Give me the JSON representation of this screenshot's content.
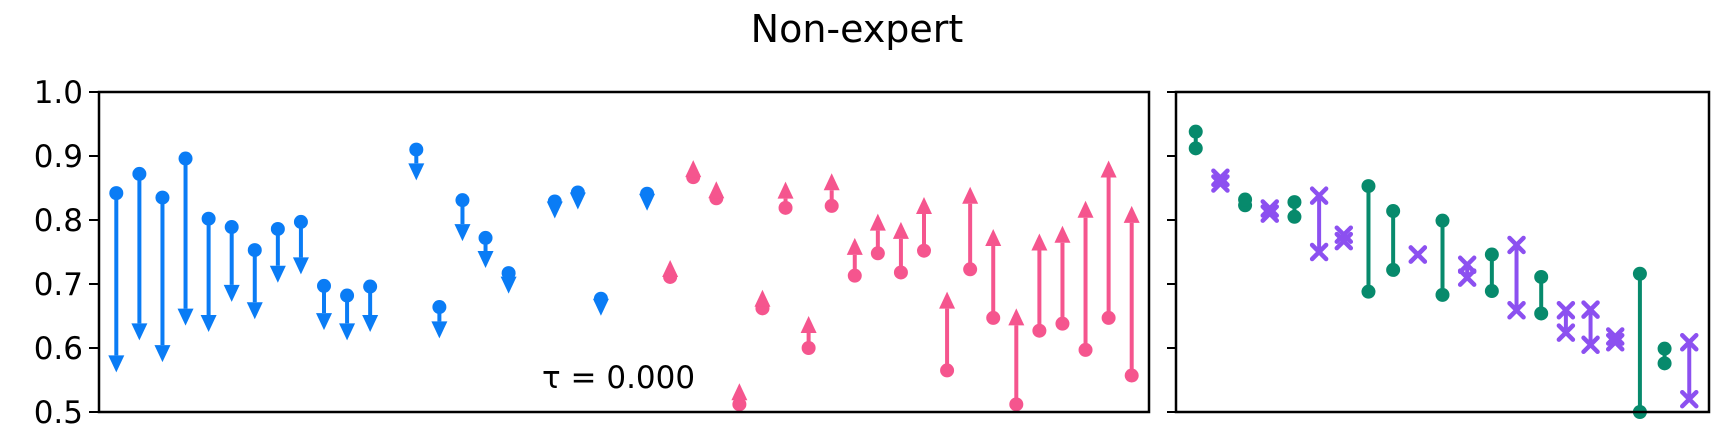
{
  "colors": {
    "decrease": "#0a7cf5",
    "increase": "#f5558e",
    "teal": "#078a6c",
    "purple": "#8c50f0"
  },
  "chart_data": [
    {
      "type": "arrow-range",
      "title": "Non-expert",
      "ylim": [
        0.5,
        1.0
      ],
      "yticks": [
        "0.5",
        "0.6",
        "0.7",
        "0.8",
        "0.9",
        "1.0"
      ],
      "grid": false,
      "annotation": "τ = 0.000",
      "decreases": [
        [
          0.842,
          0.562
        ],
        [
          0.872,
          0.612
        ],
        [
          0.835,
          0.578
        ],
        [
          0.896,
          0.635
        ],
        [
          0.802,
          0.625
        ],
        [
          0.789,
          0.672
        ],
        [
          0.753,
          0.645
        ],
        [
          0.786,
          0.702
        ],
        [
          0.797,
          0.715
        ],
        [
          0.697,
          0.628
        ],
        [
          0.682,
          0.612
        ],
        [
          0.696,
          0.625
        ],
        [
          null,
          null
        ],
        [
          0.91,
          0.862
        ],
        [
          0.664,
          0.615
        ],
        [
          0.831,
          0.767
        ],
        [
          0.772,
          0.725
        ],
        [
          0.717,
          0.685
        ],
        [
          null,
          null
        ],
        [
          0.829,
          0.82
        ],
        [
          0.843,
          0.834
        ],
        [
          0.677,
          0.672
        ],
        [
          null,
          null
        ],
        [
          0.841,
          0.837
        ]
      ],
      "increases": [
        [
          0.711,
          0.715
        ],
        [
          0.867,
          0.878
        ],
        [
          0.834,
          0.845
        ],
        [
          0.512,
          0.545
        ],
        [
          0.662,
          0.691
        ],
        [
          0.819,
          0.86
        ],
        [
          0.6,
          0.65
        ],
        [
          0.822,
          0.873
        ],
        [
          0.713,
          0.772
        ],
        [
          0.748,
          0.81
        ],
        [
          0.718,
          0.797
        ],
        [
          0.752,
          0.836
        ],
        [
          0.565,
          0.688
        ],
        [
          0.723,
          0.852
        ],
        [
          0.647,
          0.786
        ],
        [
          0.512,
          0.662
        ],
        [
          0.627,
          0.779
        ],
        [
          0.638,
          0.791
        ],
        [
          0.597,
          0.83
        ],
        [
          0.647,
          0.893
        ],
        [
          0.557,
          0.822
        ]
      ]
    },
    {
      "type": "dumbbell",
      "ylim": [
        0.5,
        1.0
      ],
      "grid": false,
      "groups": [
        {
          "marker": "circle",
          "low": 0.912,
          "high": 0.938
        },
        {
          "marker": "x",
          "low": 0.857,
          "high": 0.866
        },
        {
          "marker": "circle",
          "low": 0.823,
          "high": 0.832
        },
        {
          "marker": "x",
          "low": 0.81,
          "high": 0.818
        },
        {
          "marker": "circle",
          "low": 0.805,
          "high": 0.828
        },
        {
          "marker": "x",
          "low": 0.75,
          "high": 0.838
        },
        {
          "marker": "x",
          "low": 0.767,
          "high": 0.777
        },
        {
          "marker": "circle",
          "low": 0.688,
          "high": 0.853
        },
        {
          "marker": "circle",
          "low": 0.722,
          "high": 0.814
        },
        {
          "marker": "x",
          "low": 0.746,
          "high": 0.746
        },
        {
          "marker": "circle",
          "low": 0.683,
          "high": 0.799
        },
        {
          "marker": "x",
          "low": 0.71,
          "high": 0.73
        },
        {
          "marker": "circle",
          "low": 0.689,
          "high": 0.746
        },
        {
          "marker": "x",
          "low": 0.659,
          "high": 0.761
        },
        {
          "marker": "circle",
          "low": 0.654,
          "high": 0.711
        },
        {
          "marker": "x",
          "low": 0.624,
          "high": 0.659
        },
        {
          "marker": "x",
          "low": 0.605,
          "high": 0.66
        },
        {
          "marker": "x",
          "low": 0.609,
          "high": 0.618
        },
        {
          "marker": "circle",
          "low": 0.5,
          "high": 0.716
        },
        {
          "marker": "circle",
          "low": 0.576,
          "high": 0.599
        },
        {
          "marker": "x",
          "low": 0.52,
          "high": 0.609
        }
      ]
    }
  ]
}
